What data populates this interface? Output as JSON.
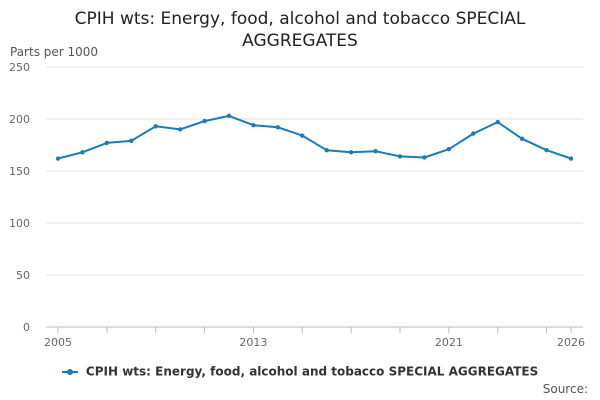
{
  "chart_data": {
    "type": "line",
    "title": "CPIH wts: Energy, food, alcohol and tobacco SPECIAL AGGREGATES",
    "ylabel": "Parts per 1000",
    "xlabel": "",
    "ylim": [
      0,
      250
    ],
    "yticks": [
      0,
      50,
      100,
      150,
      200,
      250
    ],
    "xlim": [
      2005,
      2026
    ],
    "xtick_labels": [
      2005,
      2013,
      2021,
      2026
    ],
    "grid": true,
    "legend_position": "bottom",
    "series": [
      {
        "name": "CPIH wts: Energy, food, alcohol and tobacco SPECIAL AGGREGATES",
        "color": "#1b7ab8",
        "x": [
          2005,
          2006,
          2007,
          2008,
          2009,
          2010,
          2011,
          2012,
          2013,
          2014,
          2015,
          2016,
          2017,
          2018,
          2019,
          2020,
          2021,
          2022,
          2023,
          2024,
          2025,
          2026
        ],
        "values": [
          162,
          168,
          177,
          179,
          193,
          190,
          198,
          203,
          194,
          192,
          184,
          170,
          168,
          169,
          164,
          163,
          171,
          186,
          197,
          181,
          170,
          162
        ]
      }
    ]
  },
  "source_label": "Source:"
}
